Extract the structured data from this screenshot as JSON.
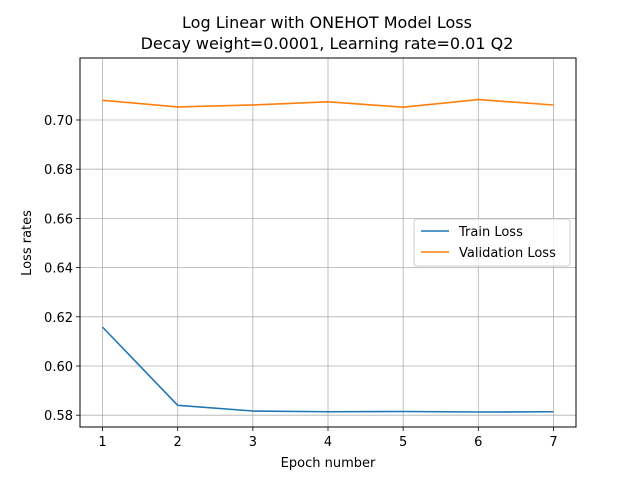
{
  "chart_data": {
    "type": "line",
    "title_line1": "Log Linear with ONEHOT Model Loss",
    "title_line2": "Decay weight=0.0001, Learning rate=0.01 Q2",
    "xlabel": "Epoch number",
    "ylabel": "Loss rates",
    "x": [
      1,
      2,
      3,
      4,
      5,
      6,
      7
    ],
    "x_ticks": [
      1,
      2,
      3,
      4,
      5,
      6,
      7
    ],
    "y_ticks": [
      0.58,
      0.6,
      0.62,
      0.64,
      0.66,
      0.68,
      0.7
    ],
    "y_tick_labels": [
      "0.58",
      "0.60",
      "0.62",
      "0.64",
      "0.66",
      "0.68",
      "0.70"
    ],
    "xlim": [
      0.7,
      7.3
    ],
    "ylim": [
      0.5752,
      0.7252
    ],
    "grid": true,
    "legend_position": "center-right",
    "series": [
      {
        "name": "Train Loss",
        "color": "#1f77b4",
        "values": [
          0.6158,
          0.584,
          0.5817,
          0.5814,
          0.5815,
          0.5813,
          0.5814
        ]
      },
      {
        "name": "Validation Loss",
        "color": "#ff7f0e",
        "values": [
          0.708,
          0.7053,
          0.7061,
          0.7074,
          0.7052,
          0.7083,
          0.7061
        ]
      }
    ]
  }
}
